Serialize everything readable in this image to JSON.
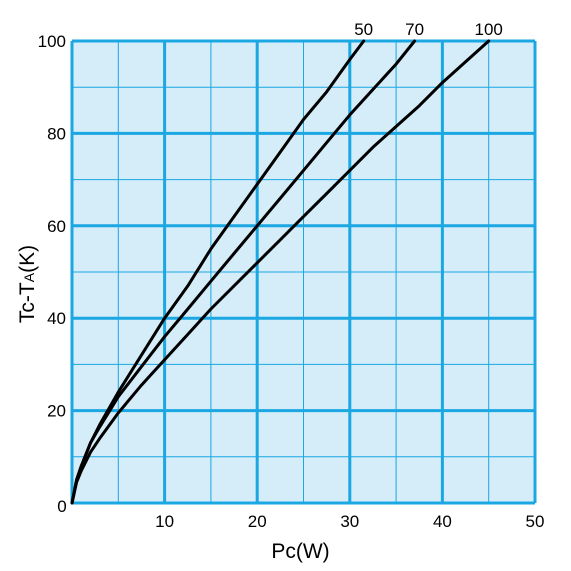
{
  "chart_data": {
    "type": "line",
    "xlabel": {
      "main": "Pc",
      "sub": "",
      "unit": "(W)"
    },
    "ylabel": {
      "main": "Tc-T",
      "sub": "A",
      "unit": "(K)"
    },
    "xlim": [
      0,
      50
    ],
    "ylim": [
      0,
      100
    ],
    "xticks": [
      10,
      20,
      30,
      40,
      50
    ],
    "yticks": [
      0,
      20,
      40,
      60,
      80,
      100
    ],
    "grid": true,
    "minor_grid_step": {
      "x": 5,
      "y": 10
    },
    "colors": {
      "plot_bg": "#d5ecf9",
      "grid": "#1aa7e2",
      "line": "#000000"
    },
    "series": [
      {
        "name": "50",
        "points": [
          [
            0,
            0
          ],
          [
            0.5,
            5
          ],
          [
            1,
            8
          ],
          [
            2,
            13
          ],
          [
            3,
            17
          ],
          [
            5,
            24
          ],
          [
            7.5,
            32
          ],
          [
            10,
            40
          ],
          [
            12.5,
            47
          ],
          [
            15,
            55
          ],
          [
            17.5,
            62
          ],
          [
            20,
            69
          ],
          [
            22.5,
            76
          ],
          [
            25,
            83
          ],
          [
            27.5,
            89
          ],
          [
            30,
            96
          ],
          [
            31.5,
            100
          ]
        ]
      },
      {
        "name": "70",
        "points": [
          [
            0,
            0
          ],
          [
            0.5,
            5
          ],
          [
            1,
            8
          ],
          [
            2,
            13
          ],
          [
            3,
            16.5
          ],
          [
            5,
            23
          ],
          [
            7.5,
            29.5
          ],
          [
            10,
            36
          ],
          [
            12.5,
            42
          ],
          [
            15,
            48
          ],
          [
            17.5,
            54
          ],
          [
            20,
            60
          ],
          [
            22.5,
            66
          ],
          [
            25,
            72
          ],
          [
            27.5,
            78
          ],
          [
            30,
            84
          ],
          [
            32.5,
            89.5
          ],
          [
            35,
            95
          ],
          [
            37,
            100
          ]
        ]
      },
      {
        "name": "100",
        "points": [
          [
            0,
            0
          ],
          [
            0.5,
            4.5
          ],
          [
            1,
            7
          ],
          [
            2,
            11
          ],
          [
            3,
            14
          ],
          [
            5,
            19.5
          ],
          [
            7.5,
            25.5
          ],
          [
            10,
            31
          ],
          [
            12.5,
            36.5
          ],
          [
            15,
            42
          ],
          [
            17.5,
            47
          ],
          [
            20,
            52
          ],
          [
            22.5,
            57
          ],
          [
            25,
            62
          ],
          [
            27.5,
            67
          ],
          [
            30,
            72
          ],
          [
            32.5,
            77
          ],
          [
            35,
            81.5
          ],
          [
            37.5,
            86
          ],
          [
            40,
            91
          ],
          [
            42.5,
            95.5
          ],
          [
            45,
            100
          ]
        ]
      }
    ]
  }
}
